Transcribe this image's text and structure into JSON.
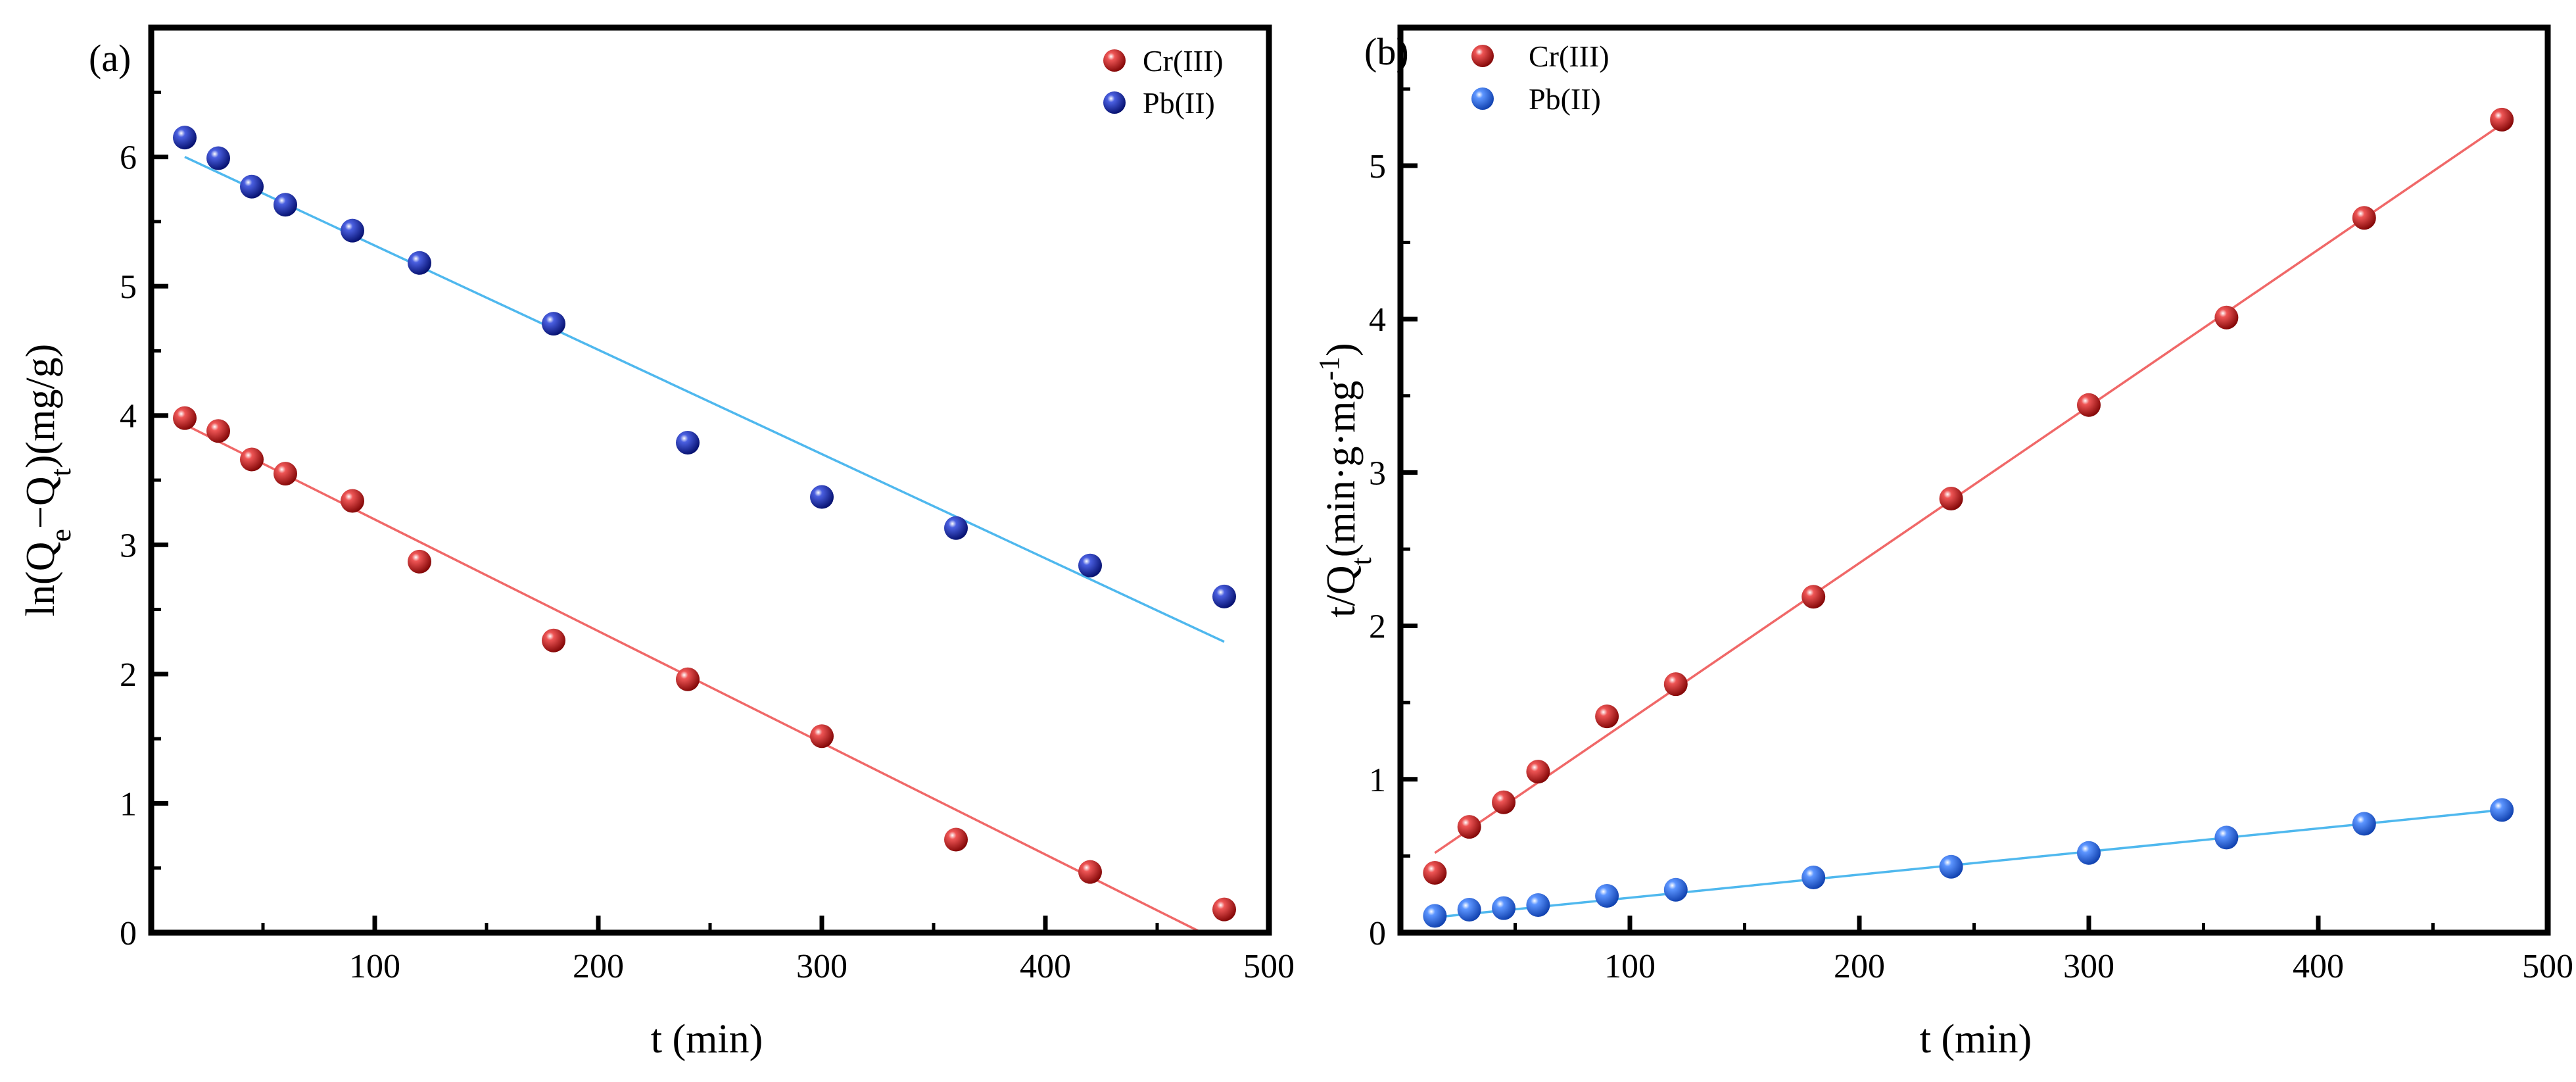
{
  "colors": {
    "cr_marker": "#d11a1a",
    "cr_line": "#f06868",
    "pb_a_marker": "#1a2fb5",
    "pb_b_marker": "#2f6df0",
    "pb_line": "#4fb8ee"
  },
  "icons": {
    "legend_marker": "sphere-marker-icon"
  },
  "chart_data": [
    {
      "panel_label": "(a)",
      "type": "scatter",
      "title": "",
      "xlabel": "t (min)",
      "ylabel_parts": {
        "p1": "ln(Q",
        "s1": "e",
        "p2": "−Q",
        "s2": "t",
        "p3": ")(mg/g)"
      },
      "xlim": [
        0,
        500
      ],
      "ylim": [
        0,
        7
      ],
      "x_ticks": [
        100,
        200,
        300,
        400,
        500
      ],
      "x_tick_labels": [
        "100",
        "200",
        "300",
        "400",
        "500"
      ],
      "y_ticks": [
        0,
        1,
        2,
        3,
        4,
        5,
        6
      ],
      "y_tick_labels": [
        "0",
        "1",
        "2",
        "3",
        "4",
        "5",
        "6"
      ],
      "legend_position": "top-right",
      "series": [
        {
          "name": "Cr(III)",
          "x": [
            15,
            30,
            45,
            60,
            90,
            120,
            180,
            240,
            300,
            360,
            420,
            480
          ],
          "y": [
            3.98,
            3.88,
            3.66,
            3.55,
            3.34,
            2.87,
            2.26,
            1.96,
            1.52,
            0.72,
            0.47,
            0.18
          ],
          "fit": {
            "x_start": 15,
            "y_start": 3.93,
            "x_end": 470,
            "y_end": 0.0
          }
        },
        {
          "name": "Pb(II)",
          "x": [
            15,
            30,
            45,
            60,
            90,
            120,
            180,
            240,
            300,
            360,
            420,
            480
          ],
          "y": [
            6.15,
            5.99,
            5.77,
            5.63,
            5.43,
            5.18,
            4.71,
            3.79,
            3.37,
            3.13,
            2.84,
            2.6
          ],
          "fit": {
            "x_start": 15,
            "y_start": 6.0,
            "x_end": 480,
            "y_end": 2.25
          }
        }
      ]
    },
    {
      "panel_label": "(b)",
      "type": "scatter",
      "title": "",
      "xlabel": "t (min)",
      "ylabel_parts": {
        "p1": "t/Q",
        "s1": "t",
        "p2": "(min·g·mg",
        "sup": "-1",
        "p3": ")"
      },
      "xlim": [
        0,
        500
      ],
      "ylim": [
        0,
        5.9
      ],
      "x_ticks": [
        100,
        200,
        300,
        400,
        500
      ],
      "x_tick_labels": [
        "100",
        "200",
        "300",
        "400",
        "500"
      ],
      "y_ticks": [
        0,
        1,
        2,
        3,
        4,
        5
      ],
      "y_tick_labels": [
        "0",
        "1",
        "2",
        "3",
        "4",
        "5"
      ],
      "legend_position": "top-left",
      "series": [
        {
          "name": "Cr(III)",
          "x": [
            15,
            30,
            45,
            60,
            90,
            120,
            180,
            240,
            300,
            360,
            420,
            480
          ],
          "y": [
            0.39,
            0.69,
            0.85,
            1.05,
            1.41,
            1.62,
            2.19,
            2.83,
            3.44,
            4.01,
            4.66,
            5.3
          ],
          "fit": {
            "x_start": 15,
            "y_start": 0.52,
            "x_end": 480,
            "y_end": 5.27
          }
        },
        {
          "name": "Pb(II)",
          "x": [
            15,
            30,
            45,
            60,
            90,
            120,
            180,
            240,
            300,
            360,
            420,
            480
          ],
          "y": [
            0.11,
            0.15,
            0.16,
            0.18,
            0.24,
            0.28,
            0.36,
            0.43,
            0.52,
            0.62,
            0.71,
            0.8
          ],
          "fit": {
            "x_start": 15,
            "y_start": 0.1,
            "x_end": 480,
            "y_end": 0.8
          }
        }
      ]
    }
  ]
}
